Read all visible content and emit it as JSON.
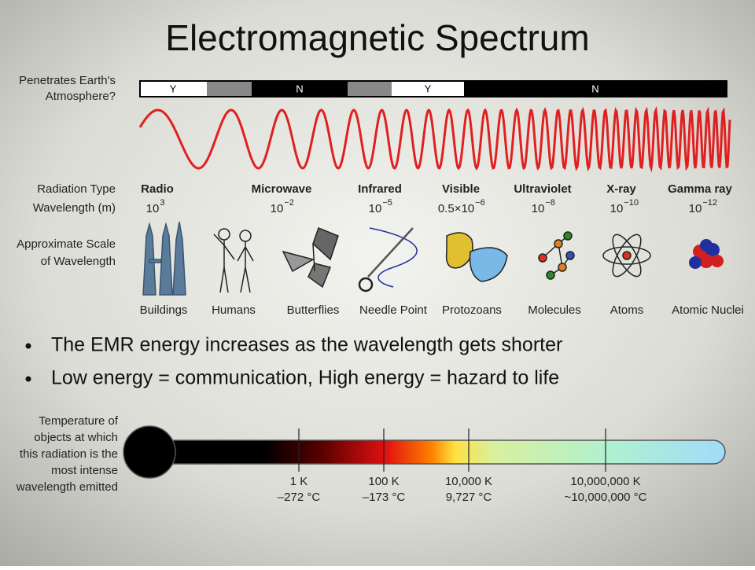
{
  "title": "Electromagnetic Spectrum",
  "atmosphere": {
    "label": [
      "Penetrates Earth's",
      "Atmosphere?"
    ],
    "segments": [
      "Y",
      "N",
      "Y",
      "N"
    ]
  },
  "radiation_label": "Radiation Type",
  "wavelength_label": "Wavelength (m)",
  "bands": [
    {
      "name": "Radio",
      "base": "10",
      "exp": "3"
    },
    {
      "name": "Microwave",
      "base": "10",
      "exp": "−2"
    },
    {
      "name": "Infrared",
      "base": "10",
      "exp": "−5"
    },
    {
      "name": "Visible",
      "base": "0.5×10",
      "exp": "−6"
    },
    {
      "name": "Ultraviolet",
      "base": "10",
      "exp": "−8"
    },
    {
      "name": "X-ray",
      "base": "10",
      "exp": "−10"
    },
    {
      "name": "Gamma ray",
      "base": "10",
      "exp": "−12"
    }
  ],
  "scale_label": [
    "Approximate Scale",
    "of Wavelength"
  ],
  "scale_items": [
    "Buildings",
    "Humans",
    "Butterflies",
    "Needle Point",
    "Protozoans",
    "Molecules",
    "Atoms",
    "Atomic Nuclei"
  ],
  "bullets": [
    "The EMR energy increases as the wavelength gets shorter",
    "Low energy = communication, High energy = hazard to life"
  ],
  "temperature_label": [
    "Temperature of",
    "objects at which",
    "this radiation is the",
    "most intense",
    "wavelength emitted"
  ],
  "temperatures": [
    {
      "kelvin": "1 K",
      "celsius": "–272 °C"
    },
    {
      "kelvin": "100 K",
      "celsius": "–173 °C"
    },
    {
      "kelvin": "10,000 K",
      "celsius": "9,727 °C"
    },
    {
      "kelvin": "10,000,000 K",
      "celsius": "~10,000,000 °C"
    }
  ]
}
